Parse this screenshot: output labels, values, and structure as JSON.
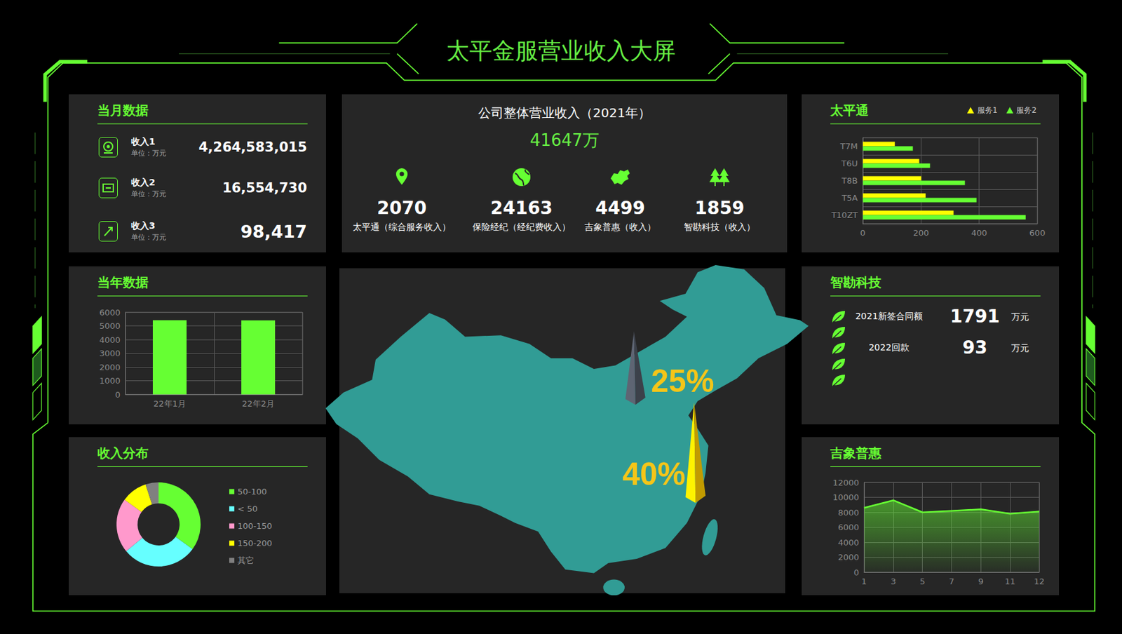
{
  "title": "太平金服营业收入大屏",
  "monthly": {
    "title": "当月数据",
    "items": [
      {
        "name": "收入1",
        "unit": "单位：万元",
        "value": 4264583015
      },
      {
        "name": "收入2",
        "unit": "单位：万元",
        "value": 16554730
      },
      {
        "name": "收入3",
        "unit": "单位：万元",
        "value": 98417
      }
    ]
  },
  "overall": {
    "title": "公司整体营业收入（2021年）",
    "total": 41647,
    "total_unit": "万",
    "items": [
      {
        "value": 2070,
        "label": "太平通（综合服务收入）"
      },
      {
        "value": 24163,
        "label": "保险经纪（经纪费收入）"
      },
      {
        "value": 4499,
        "label": "吉象普惠（收入）"
      },
      {
        "value": 1859,
        "label": "智勘科技（收入）"
      }
    ]
  },
  "zhikan": {
    "title": "智勘科技",
    "items": [
      {
        "name": "2021新签合同额",
        "value": 1791,
        "unit": "万元"
      },
      {
        "name": "2022回款",
        "value": 93,
        "unit": "万元"
      }
    ]
  },
  "map": {
    "markers": [
      {
        "value": 25,
        "label": "25%",
        "color": "#4b515c"
      },
      {
        "value": 40,
        "label": "40%",
        "color": "#f2c200"
      }
    ]
  },
  "chart_data": [
    {
      "type": "bar",
      "title": "太平通",
      "orientation": "horizontal",
      "categories": [
        "T7M",
        "T6U",
        "T8B",
        "T5A",
        "T10ZT"
      ],
      "series": [
        {
          "name": "服务1",
          "color": "#ffff00",
          "marker": "triangle",
          "values": [
            110,
            194,
            201,
            216,
            312
          ]
        },
        {
          "name": "服务2",
          "color": "#66ff33",
          "marker": "triangle",
          "values": [
            172,
            231,
            351,
            391,
            560
          ]
        }
      ],
      "xlim": [
        0,
        600
      ],
      "xticks": [
        0,
        200,
        400,
        600
      ],
      "grid": true,
      "legend": "top-right"
    },
    {
      "type": "bar",
      "title": "当年数据",
      "categories": [
        "22年1月",
        "22年2月"
      ],
      "values": [
        5420,
        5410
      ],
      "color": "#66ff33",
      "ylim": [
        0,
        6000
      ],
      "yticks": [
        0,
        1000,
        2000,
        3000,
        4000,
        5000,
        6000
      ],
      "grid": true
    },
    {
      "type": "donut",
      "title": "收入分布",
      "categories": [
        "50-100",
        "< 50",
        "100-150",
        "150-200",
        "其它"
      ],
      "values": [
        35,
        29,
        21,
        10,
        5
      ],
      "colors": [
        "#66ff33",
        "#66ffff",
        "#ff99cc",
        "#ffff00",
        "#808080"
      ],
      "legend": "right"
    },
    {
      "type": "area",
      "title": "吉象普惠",
      "categories": [
        "1",
        "3",
        "5",
        "7",
        "9",
        "11",
        "12"
      ],
      "values": [
        8600,
        9600,
        8000,
        8200,
        8400,
        7800,
        8100
      ],
      "color": "#66ff33",
      "ylim": [
        0,
        12000
      ],
      "yticks": [
        0,
        2000,
        4000,
        6000,
        8000,
        10000,
        12000
      ],
      "grid": true,
      "marker": "none"
    }
  ]
}
